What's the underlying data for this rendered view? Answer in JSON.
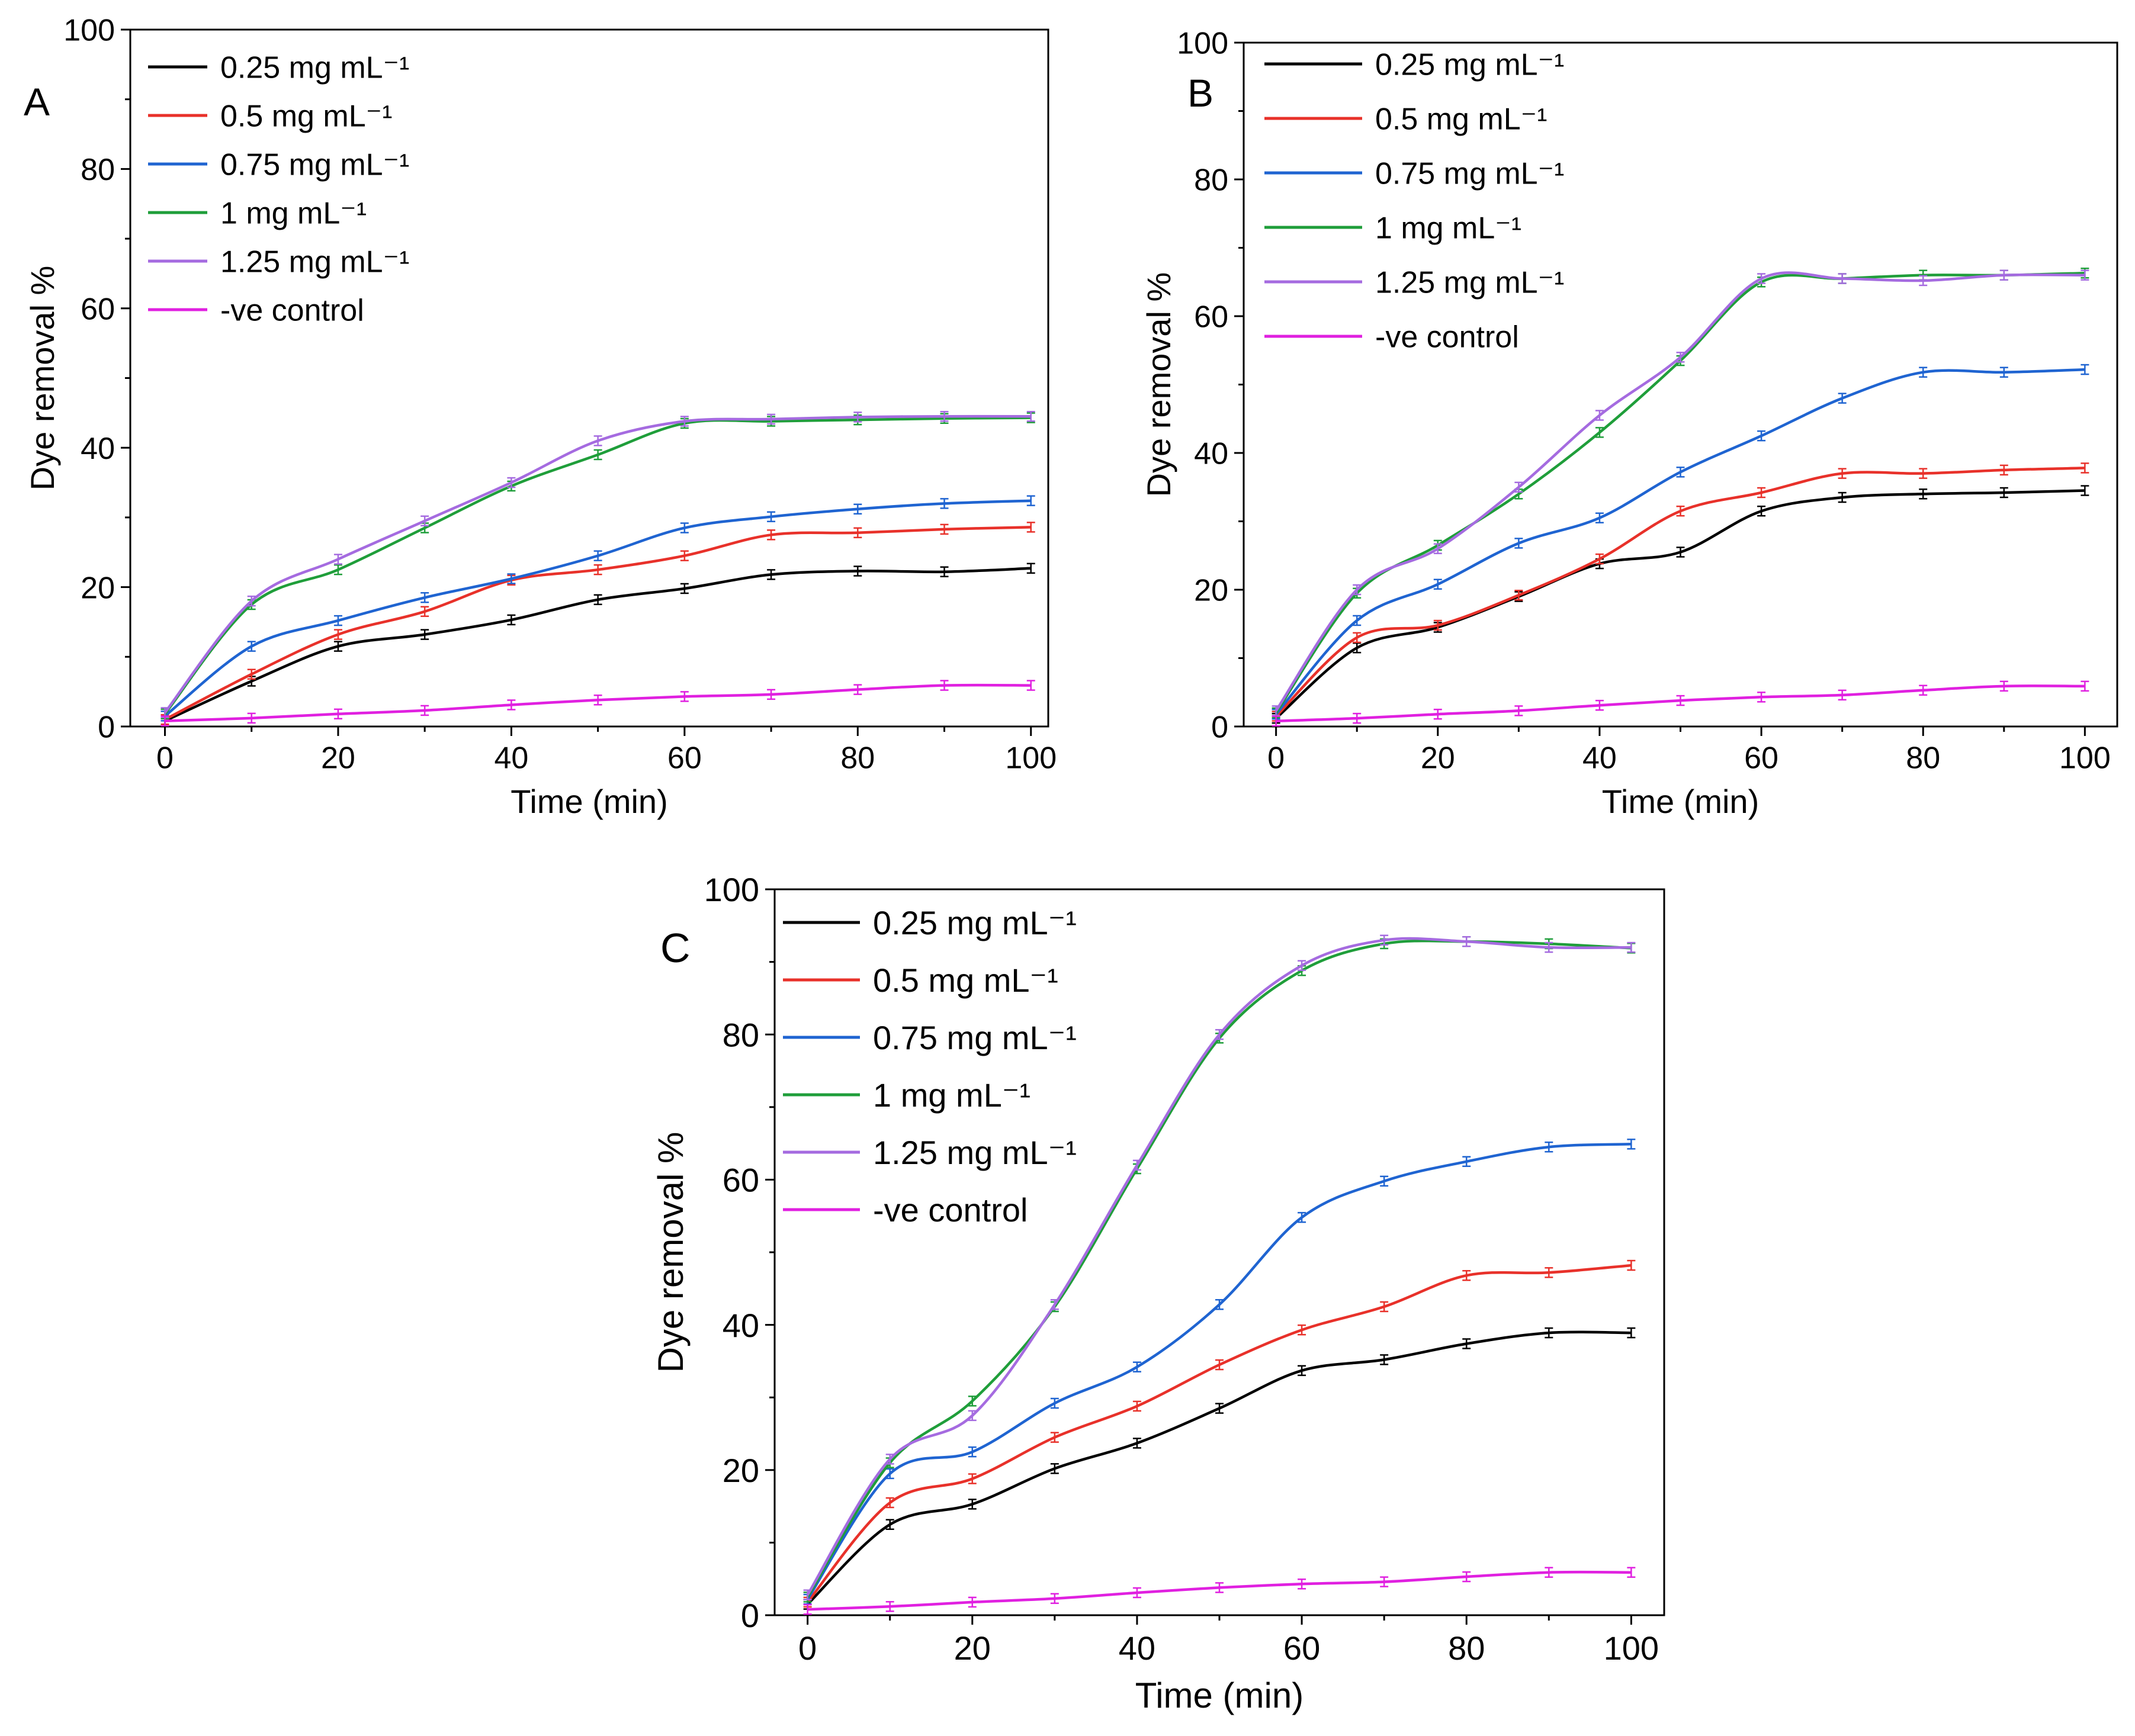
{
  "chart_data": [
    {
      "type": "line",
      "panel_label": "A",
      "xlabel": "Time (min)",
      "ylabel": "Dye removal %",
      "xlim": [
        -4,
        102
      ],
      "ylim": [
        0,
        100
      ],
      "x_ticks": [
        0,
        20,
        40,
        60,
        80,
        100
      ],
      "y_ticks": [
        0,
        20,
        40,
        60,
        80,
        100
      ],
      "x": [
        0,
        10,
        20,
        30,
        40,
        50,
        60,
        70,
        80,
        90,
        100
      ],
      "legend_position": "top-left",
      "series": [
        {
          "name": "0.25 mg mL⁻¹",
          "color": "#000000",
          "values": [
            0.8,
            6.5,
            11.5,
            13.2,
            15.3,
            18.2,
            19.8,
            21.8,
            22.3,
            22.2,
            22.7
          ]
        },
        {
          "name": "0.5 mg mL⁻¹",
          "color": "#e8312a",
          "values": [
            1.0,
            7.5,
            13.2,
            16.5,
            21.0,
            22.5,
            24.5,
            27.5,
            27.8,
            28.3,
            28.6
          ]
        },
        {
          "name": "0.75 mg mL⁻¹",
          "color": "#1f64d1",
          "values": [
            1.5,
            11.5,
            15.2,
            18.5,
            21.2,
            24.5,
            28.5,
            30.1,
            31.2,
            32.0,
            32.4
          ]
        },
        {
          "name": "1 mg mL⁻¹",
          "color": "#1f9e3a",
          "values": [
            1.8,
            17.5,
            22.5,
            28.5,
            34.5,
            39.0,
            43.5,
            43.8,
            44.0,
            44.2,
            44.3
          ]
        },
        {
          "name": "1.25 mg mL⁻¹",
          "color": "#a56be0",
          "values": [
            2.0,
            18.0,
            24.0,
            29.5,
            35.0,
            41.0,
            43.8,
            44.1,
            44.4,
            44.5,
            44.5
          ]
        },
        {
          "name": "-ve control",
          "color": "#e020e0",
          "values": [
            0.8,
            1.2,
            1.8,
            2.3,
            3.1,
            3.8,
            4.3,
            4.6,
            5.3,
            5.9,
            5.9
          ]
        }
      ]
    },
    {
      "type": "line",
      "panel_label": "B",
      "xlabel": "Time (min)",
      "ylabel": "Dye removal %",
      "xlim": [
        -4,
        104
      ],
      "ylim": [
        0,
        100
      ],
      "x_ticks": [
        0,
        20,
        40,
        60,
        80,
        100
      ],
      "y_ticks": [
        0,
        20,
        40,
        60,
        80,
        100
      ],
      "x": [
        0,
        10,
        20,
        30,
        40,
        50,
        60,
        70,
        80,
        90,
        100
      ],
      "legend_position": "top-left",
      "series": [
        {
          "name": "0.25 mg mL⁻¹",
          "color": "#000000",
          "values": [
            1.2,
            11.5,
            14.5,
            19.0,
            23.8,
            25.5,
            31.5,
            33.5,
            34.0,
            34.2,
            34.5
          ]
        },
        {
          "name": "0.5 mg mL⁻¹",
          "color": "#e8312a",
          "values": [
            1.5,
            13.0,
            14.8,
            19.2,
            24.5,
            31.5,
            34.2,
            37.0,
            37.0,
            37.5,
            37.8
          ]
        },
        {
          "name": "0.75 mg mL⁻¹",
          "color": "#1f64d1",
          "values": [
            1.8,
            15.5,
            20.8,
            26.8,
            30.5,
            37.2,
            42.5,
            48.0,
            51.8,
            51.8,
            52.2
          ]
        },
        {
          "name": "1 mg mL⁻¹",
          "color": "#1f9e3a",
          "values": [
            2.0,
            19.5,
            26.5,
            34.0,
            43.0,
            53.5,
            65.0,
            65.5,
            66.0,
            66.0,
            66.3
          ]
        },
        {
          "name": "1.25 mg mL⁻¹",
          "color": "#a56be0",
          "values": [
            2.3,
            20.0,
            26.0,
            35.0,
            45.5,
            54.0,
            65.5,
            65.5,
            65.2,
            66.0,
            66.0
          ]
        },
        {
          "name": "-ve control",
          "color": "#e020e0",
          "values": [
            0.8,
            1.2,
            1.8,
            2.3,
            3.1,
            3.8,
            4.3,
            4.6,
            5.3,
            5.9,
            5.9
          ]
        }
      ]
    },
    {
      "type": "line",
      "panel_label": "C",
      "xlabel": "Time (min)",
      "ylabel": "Dye removal %",
      "xlim": [
        -4,
        104
      ],
      "ylim": [
        0,
        100
      ],
      "x_ticks": [
        0,
        20,
        40,
        60,
        80,
        100
      ],
      "y_ticks": [
        0,
        20,
        40,
        60,
        80,
        100
      ],
      "x": [
        0,
        10,
        20,
        30,
        40,
        50,
        60,
        70,
        80,
        90,
        100
      ],
      "legend_position": "top-left",
      "series": [
        {
          "name": "0.25 mg mL⁻¹",
          "color": "#000000",
          "values": [
            1.5,
            12.5,
            15.3,
            20.2,
            23.7,
            28.5,
            33.7,
            35.2,
            37.4,
            38.9,
            38.9
          ]
        },
        {
          "name": "0.5 mg mL⁻¹",
          "color": "#e8312a",
          "values": [
            1.8,
            15.5,
            18.8,
            24.5,
            28.8,
            34.5,
            39.3,
            42.5,
            46.8,
            47.2,
            48.2
          ]
        },
        {
          "name": "0.75 mg mL⁻¹",
          "color": "#1f64d1",
          "values": [
            2.2,
            19.5,
            22.5,
            29.2,
            34.2,
            42.8,
            54.8,
            59.8,
            62.5,
            64.5,
            64.9
          ]
        },
        {
          "name": "1 mg mL⁻¹",
          "color": "#1f9e3a",
          "values": [
            2.5,
            21.0,
            29.5,
            42.5,
            61.5,
            79.5,
            88.8,
            92.5,
            92.8,
            92.5,
            91.9
          ]
        },
        {
          "name": "1.25 mg mL⁻¹",
          "color": "#a56be0",
          "values": [
            2.8,
            21.5,
            27.5,
            42.8,
            62.0,
            80.0,
            89.5,
            93.0,
            92.8,
            92.0,
            92.0
          ]
        },
        {
          "name": "-ve control",
          "color": "#e020e0",
          "values": [
            0.8,
            1.2,
            1.8,
            2.3,
            3.1,
            3.8,
            4.3,
            4.6,
            5.3,
            5.9,
            5.9
          ]
        }
      ]
    }
  ]
}
